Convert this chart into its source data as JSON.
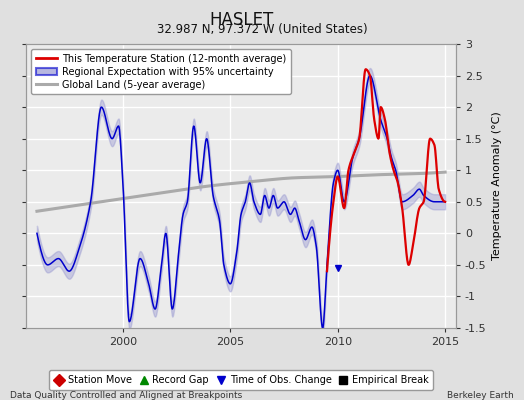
{
  "title": "HASLET",
  "subtitle": "32.987 N, 97.372 W (United States)",
  "ylabel": "Temperature Anomaly (°C)",
  "xlabel_left": "Data Quality Controlled and Aligned at Breakpoints",
  "xlabel_right": "Berkeley Earth",
  "ylim": [
    -1.5,
    3.0
  ],
  "xlim": [
    1995.5,
    2015.5
  ],
  "xticks": [
    2000,
    2005,
    2010,
    2015
  ],
  "yticks": [
    -1.5,
    -1.0,
    -0.5,
    0.0,
    0.5,
    1.0,
    1.5,
    2.0,
    2.5,
    3.0
  ],
  "bg_color": "#e0e0e0",
  "plot_bg_color": "#ebebeb",
  "grid_color": "#ffffff",
  "red_line_color": "#dd0000",
  "blue_line_color": "#0000cc",
  "blue_fill_color": "#8888cc",
  "gray_line_color": "#aaaaaa",
  "legend_items": [
    "This Temperature Station (12-month average)",
    "Regional Expectation with 95% uncertainty",
    "Global Land (5-year average)"
  ],
  "marker_legend": [
    {
      "label": "Station Move",
      "color": "#cc0000",
      "marker": "D"
    },
    {
      "label": "Record Gap",
      "color": "#008800",
      "marker": "^"
    },
    {
      "label": "Time of Obs. Change",
      "color": "#0000cc",
      "marker": "v"
    },
    {
      "label": "Empirical Break",
      "color": "#000000",
      "marker": "s"
    }
  ]
}
